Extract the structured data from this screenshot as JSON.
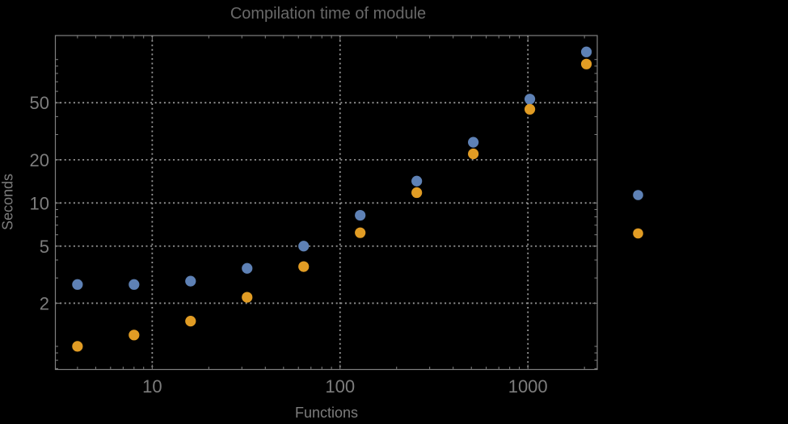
{
  "window": {
    "background_color": "#000000"
  },
  "chart_data": {
    "type": "scatter",
    "title": "Compilation time of module",
    "xlabel": "Functions",
    "ylabel": "Seconds",
    "x_scale": "log",
    "y_scale": "log",
    "xlim": [
      3.05,
      2340
    ],
    "ylim": [
      0.69,
      147
    ],
    "x_ticks": [
      10,
      100,
      1000
    ],
    "x_tick_labels": [
      "10",
      "100",
      "1000"
    ],
    "x_minor_ticks": [
      4,
      5,
      6,
      7,
      8,
      9,
      20,
      30,
      40,
      50,
      60,
      70,
      80,
      90,
      200,
      300,
      400,
      500,
      600,
      700,
      800,
      900,
      2000
    ],
    "y_ticks": [
      2,
      5,
      10,
      20,
      50
    ],
    "y_tick_labels": [
      "2",
      "5",
      "10",
      "20",
      "50"
    ],
    "y_minor_ticks": [
      0.7,
      0.8,
      0.9,
      1,
      3,
      4,
      6,
      7,
      8,
      9,
      30,
      40,
      60,
      70,
      80,
      90,
      100
    ],
    "grid": "dotted lines at labeled major ticks, all four frame edges ticked",
    "x": [
      4,
      8,
      16,
      32,
      64,
      128,
      256,
      512,
      1024,
      2048
    ],
    "series": [
      {
        "name": "",
        "color": "#5e81b5",
        "values": [
          2.7,
          2.7,
          2.85,
          3.5,
          5.0,
          8.2,
          14.2,
          26.5,
          53,
          113
        ]
      },
      {
        "name": "",
        "color": "#e19c24",
        "values": [
          1.0,
          1.2,
          1.5,
          2.2,
          3.6,
          6.2,
          11.8,
          22,
          45,
          93
        ]
      }
    ],
    "legend": {
      "position": "right of plot frame, vertically centered",
      "marker_colors": [
        "#5e81b5",
        "#e19c24"
      ],
      "labels_visible": false
    },
    "colors": {
      "background": "#000000",
      "frame": "#808080",
      "grid": "#969696",
      "title_text": "#696969",
      "label_text": "#7d7d7d",
      "tick_text": "#7d7d7d"
    }
  }
}
